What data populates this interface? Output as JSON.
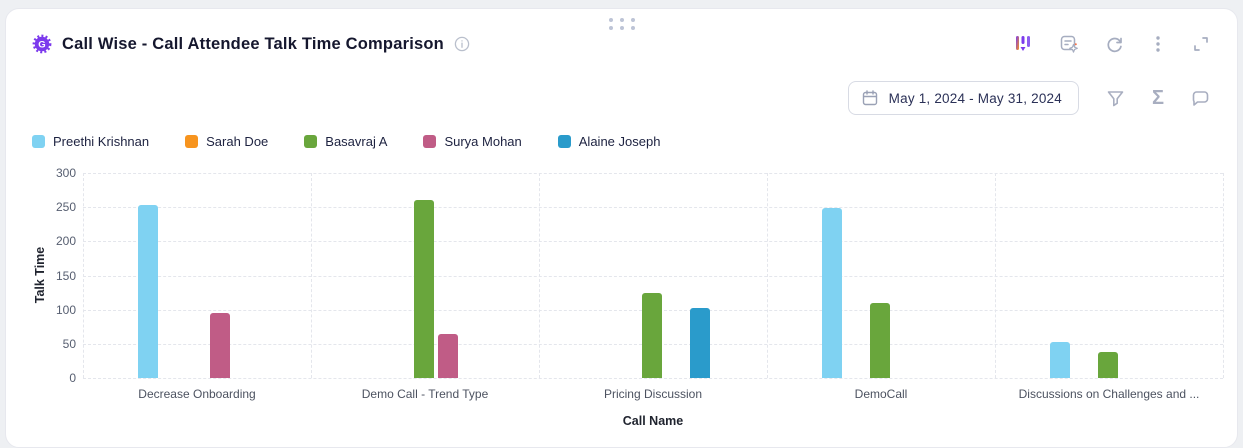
{
  "header": {
    "badge_letter": "G",
    "title": "Call Wise - Call Attendee Talk Time Comparison"
  },
  "toolbar": {
    "date_range": "May 1, 2024 - May 31, 2024"
  },
  "icons": {
    "sigma_glyph": "Σ"
  },
  "chart_data": {
    "type": "bar",
    "title": "Call Wise - Call Attendee Talk Time Comparison",
    "xlabel": "Call Name",
    "ylabel": "Talk Time",
    "ylim": [
      0,
      300
    ],
    "yticks": [
      0,
      50,
      100,
      150,
      200,
      250,
      300
    ],
    "grid": "dashed horizontal and vertical category separators",
    "legend_position": "top-left",
    "date_filter": "May 1, 2024 - May 31, 2024",
    "categories": [
      "Decrease Onboarding",
      "Demo Call - Trend Type",
      "Pricing Discussion",
      "DemoCall",
      "Discussions on Challenges and ..."
    ],
    "series": [
      {
        "name": "Preethi Krishnan",
        "color": "#7fd2f2",
        "values": [
          253,
          null,
          null,
          249,
          52
        ]
      },
      {
        "name": "Sarah Doe",
        "color": "#f7941e",
        "values": [
          null,
          null,
          null,
          null,
          null
        ]
      },
      {
        "name": "Basavraj A",
        "color": "#69a63c",
        "values": [
          null,
          260,
          124,
          110,
          38
        ]
      },
      {
        "name": "Surya Mohan",
        "color": "#c05c86",
        "values": [
          95,
          65,
          null,
          null,
          null
        ]
      },
      {
        "name": "Alaine Joseph",
        "color": "#2a9bcb",
        "values": [
          null,
          null,
          102,
          null,
          null
        ]
      }
    ]
  }
}
